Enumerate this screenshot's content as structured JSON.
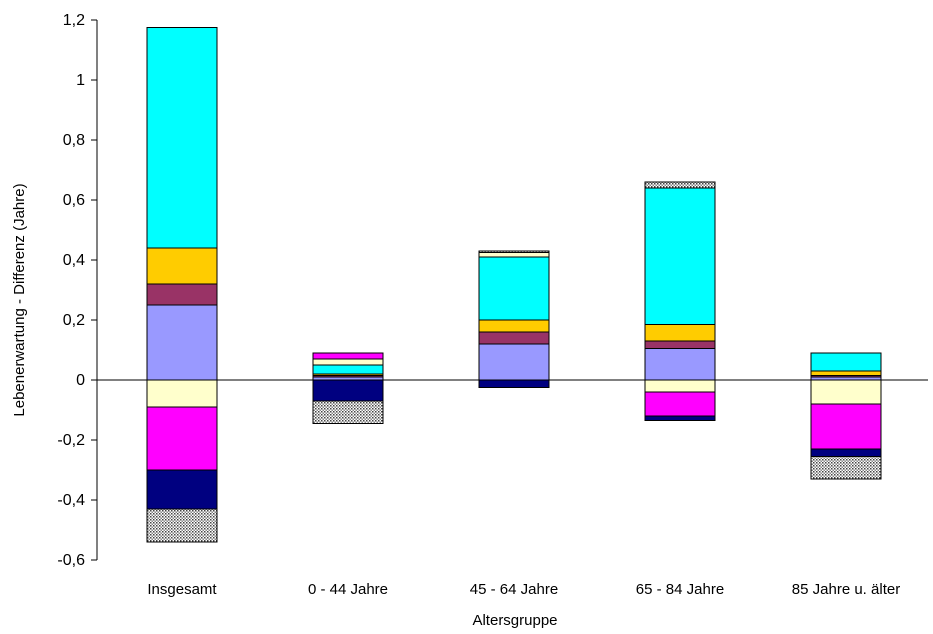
{
  "chart_data": {
    "type": "bar",
    "stacked": true,
    "xlabel": "Altersgruppe",
    "ylabel": "Lebenerwartung - Differenz (Jahre)",
    "ylim": [
      -0.6,
      1.2
    ],
    "yticks": [
      -0.6,
      -0.4,
      -0.2,
      0,
      0.2,
      0.4,
      0.6,
      0.8,
      1,
      1.2
    ],
    "ytick_labels": [
      "-0,6",
      "-0,4",
      "-0,2",
      "0",
      "0,2",
      "0,4",
      "0,6",
      "0,8",
      "1",
      "1,2"
    ],
    "categories": [
      "Insgesamt",
      "0 - 44 Jahre",
      "45 - 64 Jahre",
      "65 - 84 Jahre",
      "85 Jahre u. älter"
    ],
    "grid": false,
    "legend": "none",
    "series": [
      {
        "color": "#9999ff",
        "pattern": false,
        "values": [
          0.25,
          0.01,
          0.12,
          0.105,
          0.01
        ]
      },
      {
        "color": "#993366",
        "pattern": false,
        "values": [
          0.07,
          0.005,
          0.04,
          0.025,
          0.005
        ]
      },
      {
        "color": "#ffcc00",
        "pattern": false,
        "values": [
          0.12,
          0.005,
          0.04,
          0.055,
          0.015
        ]
      },
      {
        "color": "#00ffff",
        "pattern": false,
        "values": [
          0.735,
          0.03,
          0.21,
          0.455,
          0.06
        ]
      },
      {
        "color": "#ffffcc",
        "pattern": false,
        "values": [
          -0.09,
          0.02,
          0.015,
          -0.04,
          -0.08
        ]
      },
      {
        "color": "#ff00ff",
        "pattern": false,
        "values": [
          -0.21,
          0.02,
          0.0,
          -0.08,
          -0.15
        ]
      },
      {
        "color": "#000080",
        "pattern": false,
        "values": [
          -0.13,
          -0.07,
          -0.025,
          -0.015,
          -0.025
        ]
      },
      {
        "color": "#c0c0c0",
        "pattern": true,
        "values": [
          -0.11,
          -0.075,
          0.005,
          0.02,
          -0.075
        ]
      }
    ]
  }
}
